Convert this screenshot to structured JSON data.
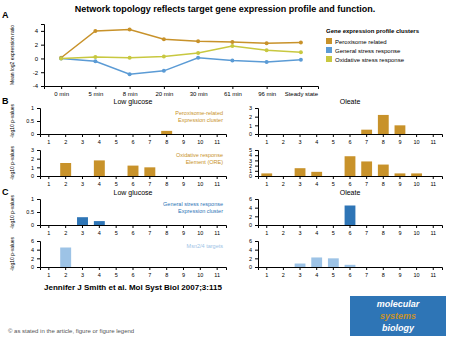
{
  "title": "Network topology reflects target gene expression profile and function.",
  "annotations": [
    {
      "text": "Jennifer J Smith et al. Mol Syst Biol 2007;3:115"
    },
    {
      "text": "© as stated in the article, figure or figure legend",
      "color": "#555555"
    }
  ],
  "logo": {
    "texts": [
      "molecular",
      "systems",
      "biology"
    ],
    "colors": [
      "white",
      "#C8922A",
      "white"
    ],
    "color": "#2E75B6"
  },
  "chart_data": [
    {
      "type": "line",
      "panel": "A",
      "categories": [
        "0 min",
        "5 min",
        "8 min",
        "20 min",
        "30 min",
        "61 min",
        "96 min",
        "Steady state"
      ],
      "series": [
        {
          "name": "Peroxisome related",
          "color": "#C8922A",
          "values": [
            0.1,
            4.0,
            4.2,
            2.8,
            2.5,
            2.4,
            2.2,
            2.3
          ]
        },
        {
          "name": "General stress response",
          "color": "#5B9BD5",
          "values": [
            0.0,
            -0.4,
            -2.3,
            -1.8,
            0.1,
            -0.3,
            -0.5,
            -0.2
          ]
        },
        {
          "name": "Oxidative stress response",
          "color": "#C8C840",
          "values": [
            0.0,
            0.2,
            0.1,
            0.3,
            0.8,
            1.8,
            1.2,
            0.9
          ]
        }
      ],
      "y_label": "Mean log2 expression ratio",
      "ylim": [
        -4,
        5
      ],
      "yticks": [
        -4,
        -2,
        0,
        2,
        4
      ],
      "marker": "circle",
      "legend": "upper right",
      "legend_title": "Gene expression profile clusters"
    },
    {
      "type": "bar",
      "panel": "B",
      "title": "Low glucose",
      "y_label": "-log10 p-values",
      "annotation": "Peroxisome-related\nExpression cluster",
      "color": "#C8922A",
      "categories": [
        "1",
        "2",
        "3",
        "4",
        "5",
        "6",
        "7",
        "8",
        "9",
        "10",
        "11"
      ],
      "values": [
        0,
        0,
        0,
        0,
        0,
        0,
        0,
        0.12,
        0,
        0,
        0
      ],
      "ylim": [
        0,
        1
      ],
      "yticks": [
        0,
        0.5,
        1
      ]
    },
    {
      "type": "bar",
      "title": "Oleate",
      "color": "#C8922A",
      "categories": [
        "1",
        "2",
        "3",
        "4",
        "5",
        "6",
        "7",
        "8",
        "9",
        "10",
        "11"
      ],
      "values": [
        0,
        0,
        0,
        0,
        0,
        0,
        0.5,
        2.2,
        1.0,
        0,
        0
      ],
      "ylim": [
        0,
        3
      ],
      "yticks": [
        0,
        1,
        2,
        3
      ]
    },
    {
      "type": "bar",
      "y_label": "-log10 p-values",
      "annotation": "Oxidative response\nElement (ORE)",
      "color": "#C8922A",
      "categories": [
        "1",
        "2",
        "3",
        "4",
        "5",
        "6",
        "7",
        "8",
        "9",
        "10",
        "11"
      ],
      "values": [
        0,
        1.5,
        0,
        1.8,
        0,
        1.2,
        1.0,
        0,
        0,
        0,
        0
      ],
      "ylim": [
        0,
        3
      ],
      "yticks": [
        0,
        1,
        2,
        3
      ]
    },
    {
      "type": "bar",
      "color": "#C8922A",
      "categories": [
        "1",
        "2",
        "3",
        "4",
        "5",
        "6",
        "7",
        "8",
        "9",
        "10",
        "11"
      ],
      "values": [
        0.5,
        0,
        1.5,
        0.8,
        0,
        3.8,
        2.8,
        2.2,
        0.5,
        0.5,
        0
      ],
      "ylim": [
        0,
        5
      ],
      "yticks": [
        0,
        1,
        2,
        3,
        4,
        5
      ]
    },
    {
      "type": "bar",
      "panel": "C",
      "title": "Low glucose",
      "y_label": "-log10 p-values",
      "annotation": "General stress response\nExpression cluster",
      "color": "#2E75B6",
      "categories": [
        "1",
        "2",
        "3",
        "4",
        "5",
        "6",
        "7",
        "8",
        "9",
        "10",
        "11"
      ],
      "values": [
        0,
        0,
        0.3,
        0.15,
        0,
        0,
        0,
        0,
        0,
        0,
        0
      ],
      "ylim": [
        0,
        1
      ],
      "yticks": [
        0,
        0.5,
        1
      ]
    },
    {
      "type": "bar",
      "title": "Oleate",
      "color": "#2E75B6",
      "categories": [
        "1",
        "2",
        "3",
        "4",
        "5",
        "6",
        "7",
        "8",
        "9",
        "10",
        "11"
      ],
      "values": [
        0,
        0,
        0,
        0,
        0,
        4.5,
        0,
        0,
        0,
        0,
        0
      ],
      "ylim": [
        0,
        6
      ],
      "yticks": [
        0,
        2,
        4,
        6
      ]
    },
    {
      "type": "bar",
      "y_label": "-log10 p-values",
      "annotation": "Msn2/4 targets",
      "color": "#9DC3E6",
      "categories": [
        "1",
        "2",
        "3",
        "4",
        "5",
        "6",
        "7",
        "8",
        "9",
        "10",
        "11"
      ],
      "values": [
        0,
        4.5,
        0,
        0,
        0,
        0,
        0,
        0,
        0,
        0,
        0
      ],
      "ylim": [
        0,
        6
      ],
      "yticks": [
        0,
        2,
        4,
        6
      ]
    },
    {
      "type": "bar",
      "color": "#9DC3E6",
      "categories": [
        "1",
        "2",
        "3",
        "4",
        "5",
        "6",
        "7",
        "8",
        "9",
        "10",
        "11"
      ],
      "values": [
        0,
        0,
        0.8,
        2.2,
        2.0,
        0.5,
        0,
        0,
        0,
        0,
        0
      ],
      "ylim": [
        0,
        6
      ],
      "yticks": [
        0,
        2,
        4,
        6
      ]
    }
  ]
}
